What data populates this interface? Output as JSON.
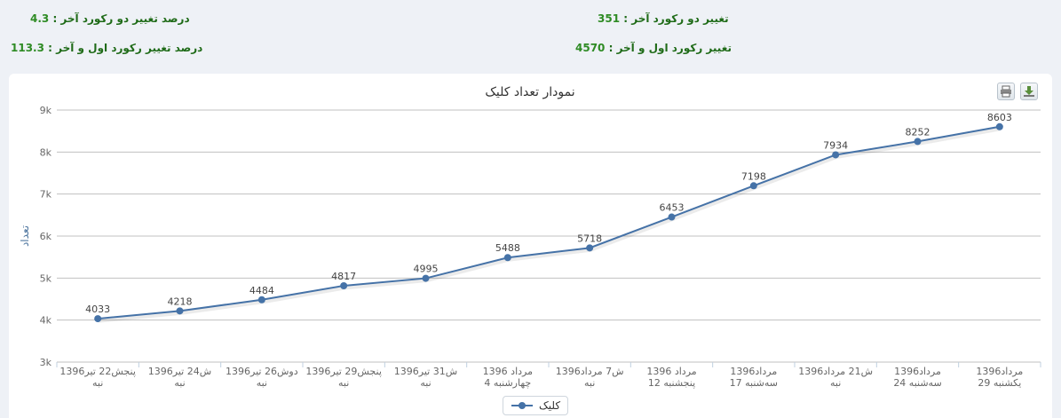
{
  "stats": [
    {
      "label": "درصد تغییر دو رکورد آخر :",
      "value": "4.3"
    },
    {
      "label": "تغییر دو رکورد آخر :",
      "value": "351"
    },
    {
      "label": "درصد تغییر رکورد اول و آخر :",
      "value": "113.3"
    },
    {
      "label": "تغییر رکورد اول و آخر :",
      "value": "4570"
    }
  ],
  "toolbar": {
    "print_icon": "printer-icon",
    "download_icon": "download-icon"
  },
  "colors": {
    "line": "#4572a7",
    "stat_text": "#2e8b24",
    "grid": "#c0c0c0"
  },
  "chart_data": {
    "type": "line",
    "title": "نمودار تعداد کلیک",
    "ylabel": "تعداد",
    "xlabel": "",
    "ylim": [
      3000,
      9000
    ],
    "yticks": [
      "3k",
      "4k",
      "5k",
      "6k",
      "7k",
      "8k",
      "9k"
    ],
    "grid": true,
    "legend_placement": "bottom-center",
    "categories": [
      [
        "1396پنجش22 تیر",
        "نبه"
      ],
      [
        "1396ش24 تیر",
        "نبه"
      ],
      [
        "1396دوش26 تیر",
        "نبه"
      ],
      [
        "1396پنجش29 تیر",
        "نبه"
      ],
      [
        "1396ش31 تیر",
        "نبه"
      ],
      [
        "مرداد 1396",
        "چهارشنبه 4"
      ],
      [
        "1396ش7 مرداد",
        "نبه"
      ],
      [
        "مرداد 1396",
        "پنجشنبه 12"
      ],
      [
        "1396مرداد",
        "سه‌شنبه 17"
      ],
      [
        "1396ش21 مرداد",
        "نبه"
      ],
      [
        "1396مرداد",
        "سه‌شنبه 24"
      ],
      [
        "1396مرداد",
        "یکشنبه 29"
      ]
    ],
    "series": [
      {
        "name": "کلیک",
        "values": [
          4033,
          4218,
          4484,
          4817,
          4995,
          5488,
          5718,
          6453,
          7198,
          7934,
          8252,
          8603
        ]
      }
    ]
  }
}
